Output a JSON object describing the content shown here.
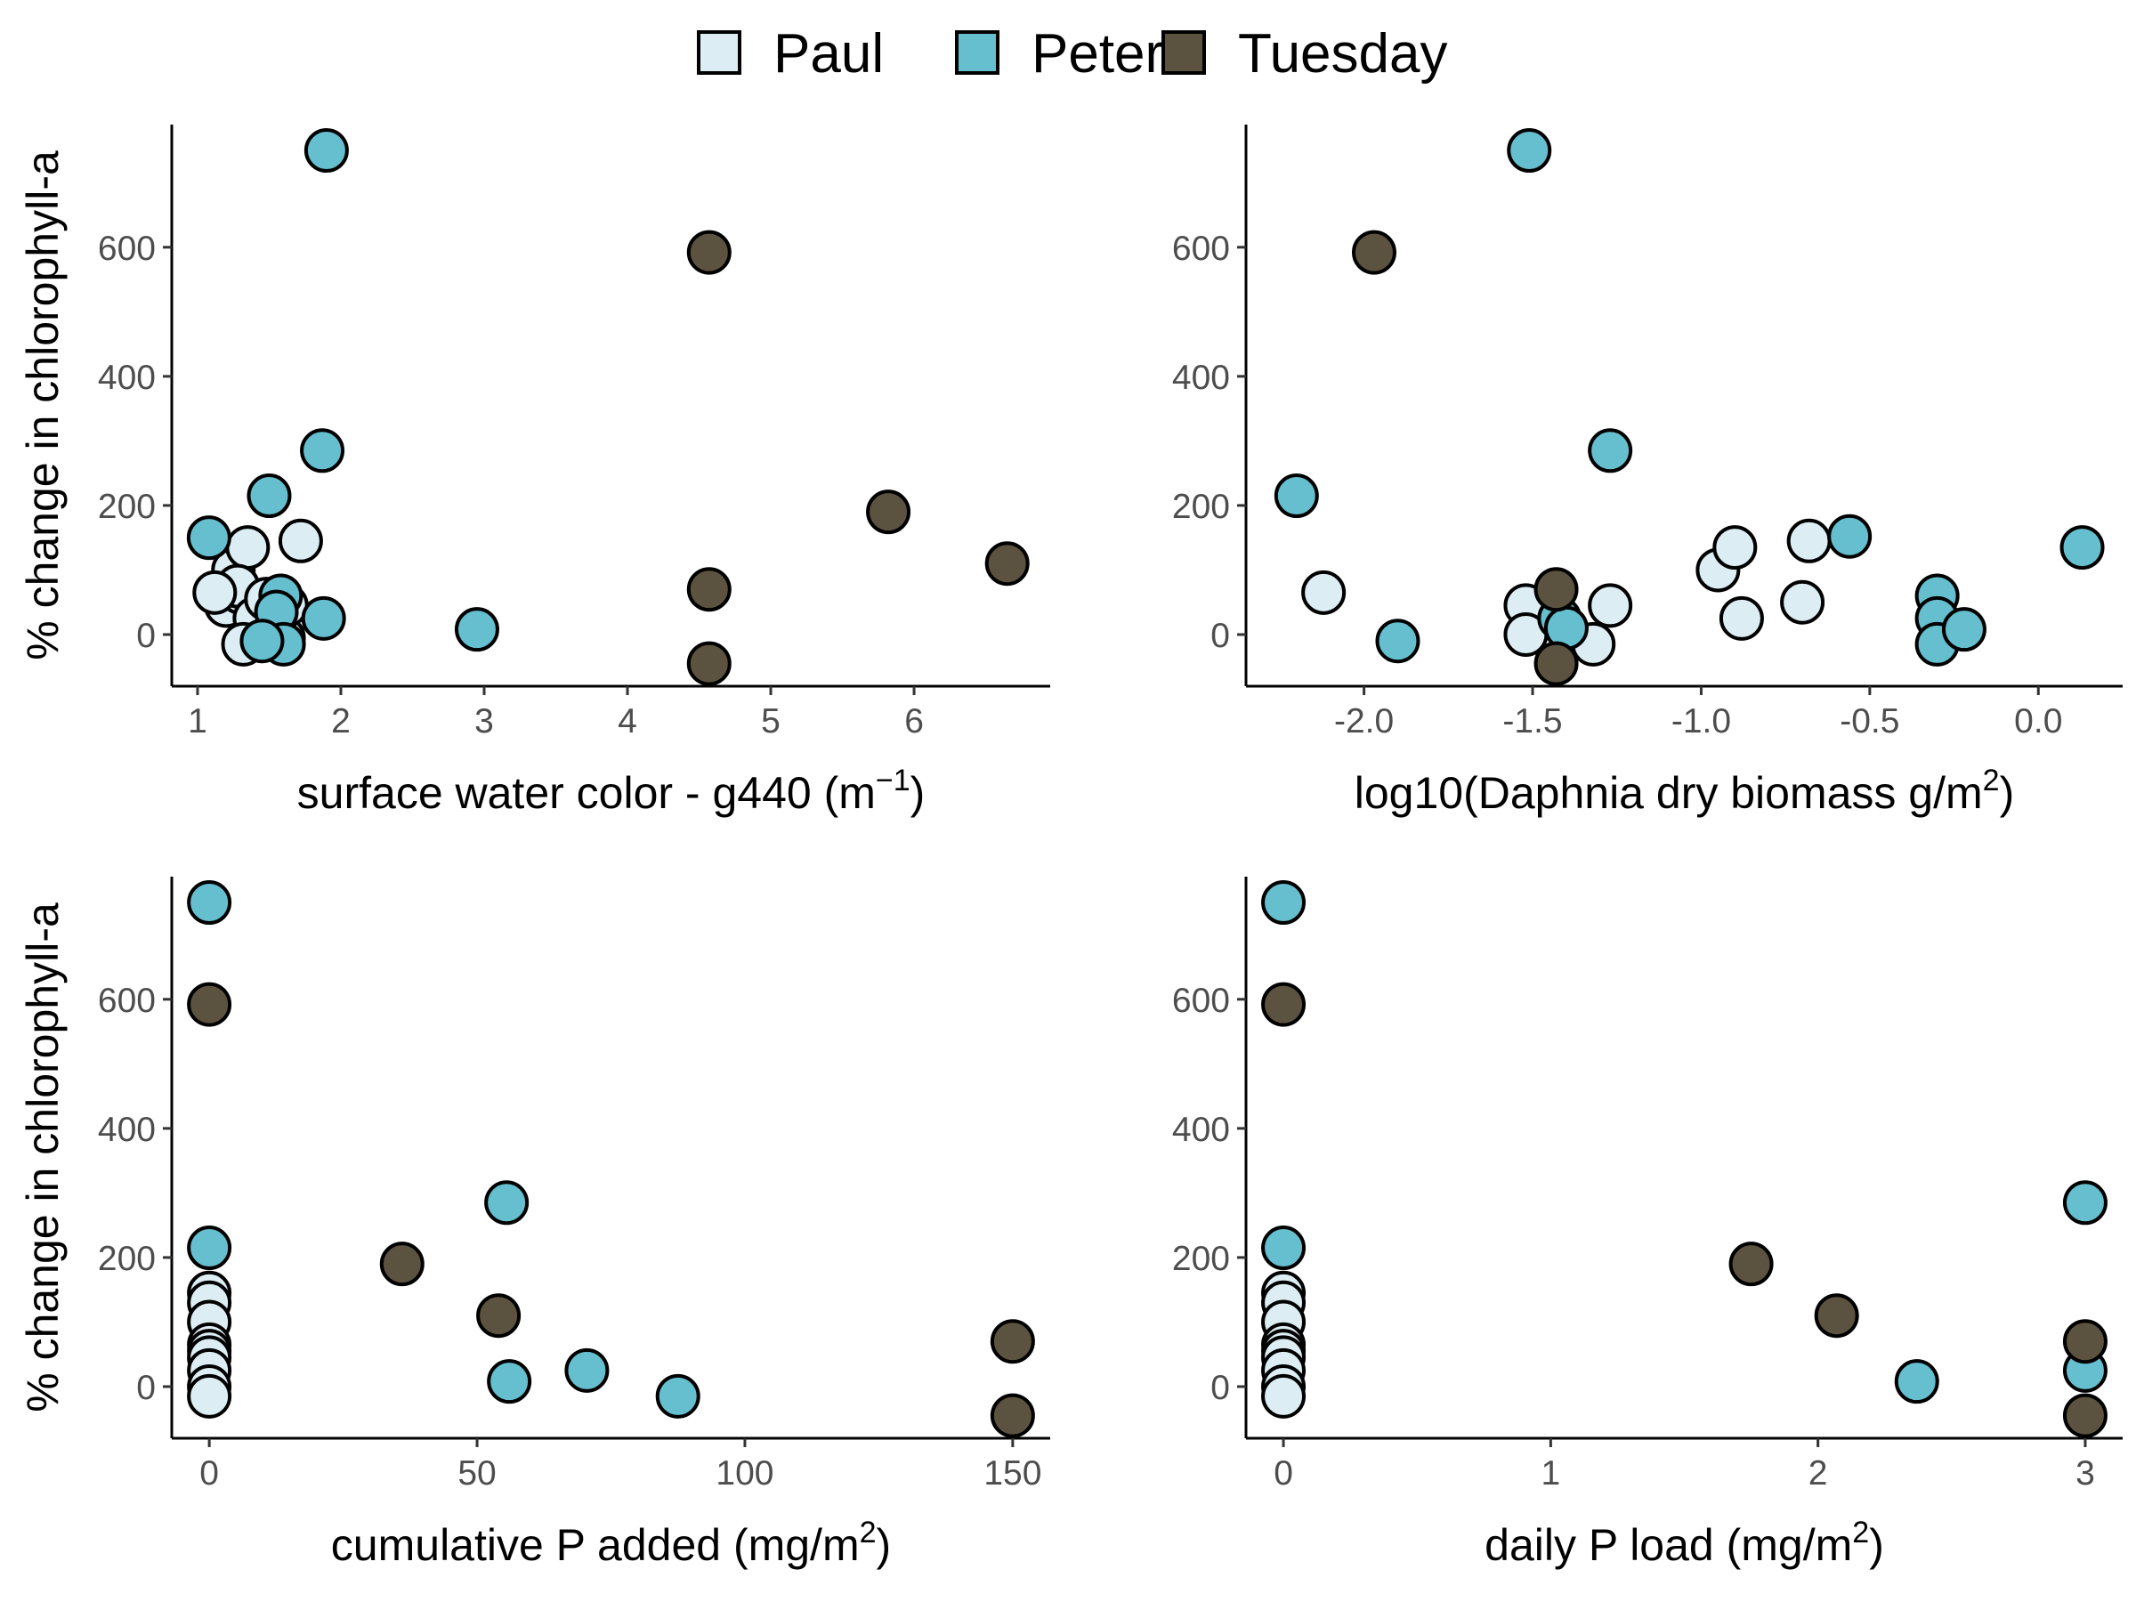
{
  "legend": {
    "items": [
      {
        "label": "Paul",
        "color": "#DCEEF4"
      },
      {
        "label": "Peter",
        "color": "#65BFCF"
      },
      {
        "label": "Tuesday",
        "color": "#5C5240"
      }
    ]
  },
  "chart_data": [
    {
      "type": "scatter",
      "xlabel": "surface water color - g440 (m",
      "xlabel_sup": "−1",
      "xlabel_tail": ")",
      "ylabel": "% change in chlorophyll-a",
      "xlim": [
        0.82,
        6.95
      ],
      "ylim": [
        -80,
        790
      ],
      "xticks": [
        1,
        2,
        3,
        4,
        5,
        6
      ],
      "xtick_labels": [
        "1",
        "2",
        "3",
        "4",
        "5",
        "6"
      ],
      "yticks": [
        0,
        200,
        400,
        600
      ],
      "ytick_labels": [
        "0",
        "200",
        "400",
        "600"
      ],
      "series": [
        {
          "name": "Paul",
          "color": "#DCEEF4",
          "points": [
            [
              1.2,
              45
            ],
            [
              1.25,
              100
            ],
            [
              1.3,
              65
            ],
            [
              1.35,
              135
            ],
            [
              1.28,
              75
            ],
            [
              1.4,
              25
            ],
            [
              1.32,
              -15
            ],
            [
              1.6,
              -5
            ],
            [
              1.62,
              45
            ],
            [
              1.72,
              145
            ],
            [
              1.48,
              55
            ],
            [
              1.12,
              65
            ]
          ]
        },
        {
          "name": "Peter",
          "color": "#65BFCF",
          "points": [
            [
              1.08,
              150
            ],
            [
              1.9,
              750
            ],
            [
              1.5,
              215
            ],
            [
              1.87,
              285
            ],
            [
              1.88,
              25
            ],
            [
              2.95,
              8
            ],
            [
              1.58,
              60
            ],
            [
              1.55,
              35
            ],
            [
              1.6,
              -15
            ],
            [
              1.45,
              -10
            ]
          ]
        },
        {
          "name": "Tuesday",
          "color": "#5C5240",
          "points": [
            [
              4.57,
              592
            ],
            [
              4.57,
              70
            ],
            [
              4.57,
              -45
            ],
            [
              5.82,
              190
            ],
            [
              6.65,
              110
            ]
          ]
        }
      ]
    },
    {
      "type": "scatter",
      "xlabel": "log10(Daphnia dry biomass g/m",
      "xlabel_sup": "2",
      "xlabel_tail": ")",
      "ylabel": "",
      "xlim": [
        -2.35,
        0.25
      ],
      "ylim": [
        -80,
        790
      ],
      "xticks": [
        -2.0,
        -1.5,
        -1.0,
        -0.5,
        0.0
      ],
      "xtick_labels": [
        "-2.0",
        "-1.5",
        "-1.0",
        "-0.5",
        "0.0"
      ],
      "yticks": [
        0,
        200,
        400,
        600
      ],
      "ytick_labels": [
        "0",
        "200",
        "400",
        "600"
      ],
      "series": [
        {
          "name": "Paul",
          "color": "#DCEEF4",
          "points": [
            [
              -2.12,
              65
            ],
            [
              -1.52,
              45
            ],
            [
              -1.52,
              0
            ],
            [
              -1.32,
              -15
            ],
            [
              -1.27,
              45
            ],
            [
              -0.95,
              100
            ],
            [
              -0.9,
              135
            ],
            [
              -0.88,
              25
            ],
            [
              -0.7,
              50
            ],
            [
              -0.68,
              145
            ]
          ]
        },
        {
          "name": "Peter",
          "color": "#65BFCF",
          "points": [
            [
              -2.2,
              215
            ],
            [
              -1.9,
              -10
            ],
            [
              -1.51,
              750
            ],
            [
              -1.27,
              285
            ],
            [
              -1.42,
              25
            ],
            [
              -1.4,
              10
            ],
            [
              -0.56,
              152
            ],
            [
              -0.3,
              60
            ],
            [
              -0.3,
              25
            ],
            [
              -0.3,
              -15
            ],
            [
              -0.22,
              8
            ],
            [
              0.13,
              135
            ]
          ]
        },
        {
          "name": "Tuesday",
          "color": "#5C5240",
          "points": [
            [
              -1.97,
              592
            ],
            [
              -1.43,
              70
            ],
            [
              -1.43,
              -45
            ]
          ]
        }
      ]
    },
    {
      "type": "scatter",
      "xlabel": "cumulative P added (mg/m",
      "xlabel_sup": "2",
      "xlabel_tail": ")",
      "ylabel": "% change in chlorophyll-a",
      "xlim": [
        -7,
        157
      ],
      "ylim": [
        -80,
        790
      ],
      "xticks": [
        0,
        50,
        100,
        150
      ],
      "xtick_labels": [
        "0",
        "50",
        "100",
        "150"
      ],
      "yticks": [
        0,
        200,
        400,
        600
      ],
      "ytick_labels": [
        "0",
        "200",
        "400",
        "600"
      ],
      "series": [
        {
          "name": "Paul",
          "color": "#DCEEF4",
          "points": [
            [
              0,
              145
            ],
            [
              0,
              130
            ],
            [
              0,
              100
            ],
            [
              0,
              65
            ],
            [
              0,
              55
            ],
            [
              0,
              45
            ],
            [
              0,
              25
            ],
            [
              0,
              0
            ],
            [
              0,
              -15
            ]
          ]
        },
        {
          "name": "Peter",
          "color": "#65BFCF",
          "points": [
            [
              0,
              750
            ],
            [
              0,
              215
            ],
            [
              55.5,
              285
            ],
            [
              56,
              8
            ],
            [
              70.5,
              25
            ],
            [
              87.5,
              -15
            ]
          ]
        },
        {
          "name": "Tuesday",
          "color": "#5C5240",
          "points": [
            [
              0,
              592
            ],
            [
              36,
              190
            ],
            [
              54,
              110
            ],
            [
              150,
              70
            ],
            [
              150,
              -45
            ]
          ]
        }
      ]
    },
    {
      "type": "scatter",
      "xlabel": "daily P load (mg/m",
      "xlabel_sup": "2",
      "xlabel_tail": ")",
      "ylabel": "",
      "xlim": [
        -0.14,
        3.14
      ],
      "ylim": [
        -80,
        790
      ],
      "xticks": [
        0,
        1,
        2,
        3
      ],
      "xtick_labels": [
        "0",
        "1",
        "2",
        "3"
      ],
      "yticks": [
        0,
        200,
        400,
        600
      ],
      "ytick_labels": [
        "0",
        "200",
        "400",
        "600"
      ],
      "series": [
        {
          "name": "Paul",
          "color": "#DCEEF4",
          "points": [
            [
              0,
              145
            ],
            [
              0,
              130
            ],
            [
              0,
              100
            ],
            [
              0,
              65
            ],
            [
              0,
              55
            ],
            [
              0,
              45
            ],
            [
              0,
              25
            ],
            [
              0,
              0
            ],
            [
              0,
              -15
            ]
          ]
        },
        {
          "name": "Peter",
          "color": "#65BFCF",
          "points": [
            [
              0,
              750
            ],
            [
              0,
              215
            ],
            [
              3,
              285
            ],
            [
              3,
              25
            ],
            [
              2.37,
              8
            ]
          ]
        },
        {
          "name": "Tuesday",
          "color": "#5C5240",
          "points": [
            [
              0,
              592
            ],
            [
              1.75,
              190
            ],
            [
              2.07,
              110
            ],
            [
              3,
              70
            ],
            [
              3,
              -45
            ]
          ]
        }
      ]
    }
  ]
}
